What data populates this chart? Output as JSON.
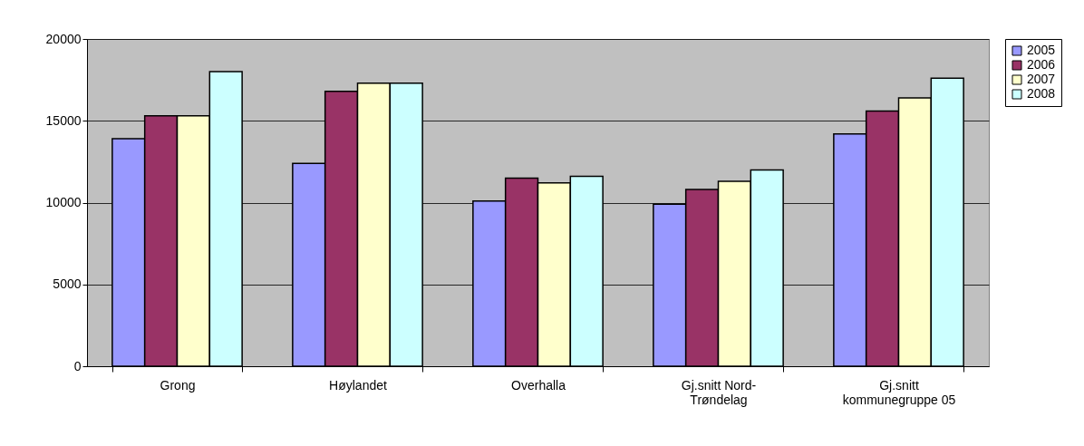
{
  "chart_data": {
    "type": "bar",
    "categories": [
      "Grong",
      "Høylandet",
      "Overhalla",
      "Gj.snitt Nord-\nTrøndelag",
      "Gj.snitt\nkommunegruppe 05"
    ],
    "series": [
      {
        "name": "2005",
        "color": "#9999ff",
        "values": [
          13900,
          12400,
          10100,
          9900,
          14200
        ]
      },
      {
        "name": "2006",
        "color": "#993366",
        "values": [
          15300,
          16800,
          11500,
          10800,
          15600
        ]
      },
      {
        "name": "2007",
        "color": "#ffffcc",
        "values": [
          15300,
          17300,
          11200,
          11300,
          16400
        ]
      },
      {
        "name": "2008",
        "color": "#ccffff",
        "values": [
          18000,
          17300,
          11600,
          12000,
          17600
        ]
      }
    ],
    "ylim": [
      0,
      20000
    ],
    "yticks": [
      0,
      5000,
      10000,
      15000,
      20000
    ],
    "grid": "y",
    "legend": "right"
  }
}
